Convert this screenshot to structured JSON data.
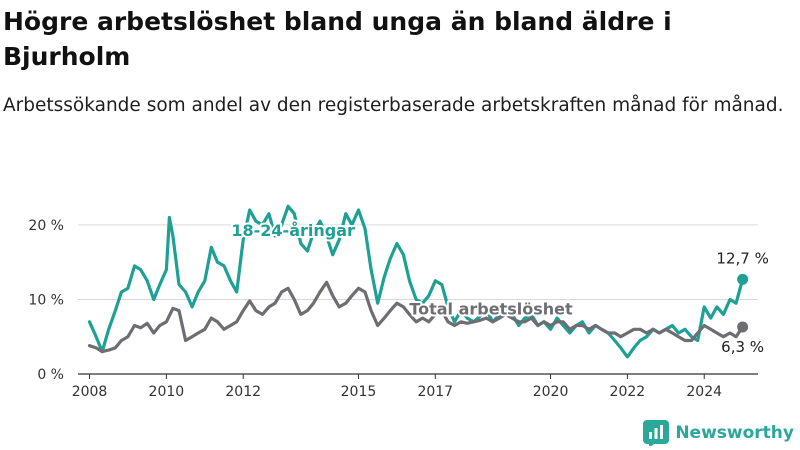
{
  "header": {
    "title": "Högre arbetslöshet bland unga än bland äldre i Bjurholm",
    "subtitle": "Arbetssökande som andel av den registerbaserade arbetskraften månad för månad."
  },
  "brand": {
    "name": "Newsworthy",
    "icon": "newsworthy-logo-icon",
    "color": "#2aa89a"
  },
  "chart_data": {
    "type": "line",
    "title": "",
    "xlabel": "",
    "ylabel": "",
    "xlim": [
      2007.7,
      2025.4
    ],
    "ylim": [
      0,
      22
    ],
    "y_ticks": [
      0,
      10,
      20
    ],
    "y_tick_labels": [
      "0 %",
      "10 %",
      "20 %"
    ],
    "x_ticks": [
      2008,
      2010,
      2012,
      2015,
      2017,
      2020,
      2022,
      2024
    ],
    "x_tick_labels": [
      "2008",
      "2010",
      "2012",
      "2015",
      "2017",
      "2020",
      "2022",
      "2024"
    ],
    "grid": true,
    "legend": "inline labels",
    "series": [
      {
        "name": "18-24-åringar",
        "color": "#1ea095",
        "end_label": "12,7 %",
        "points": [
          [
            2008.0,
            7.0
          ],
          [
            2008.17,
            5.0
          ],
          [
            2008.33,
            3.0
          ],
          [
            2008.5,
            6.0
          ],
          [
            2008.67,
            8.5
          ],
          [
            2008.83,
            11.0
          ],
          [
            2009.0,
            11.5
          ],
          [
            2009.17,
            14.5
          ],
          [
            2009.33,
            14.0
          ],
          [
            2009.5,
            12.5
          ],
          [
            2009.67,
            10.0
          ],
          [
            2009.83,
            12.0
          ],
          [
            2010.0,
            14.0
          ],
          [
            2010.08,
            21.0
          ],
          [
            2010.17,
            18.5
          ],
          [
            2010.33,
            12.0
          ],
          [
            2010.5,
            11.0
          ],
          [
            2010.67,
            9.0
          ],
          [
            2010.83,
            11.0
          ],
          [
            2011.0,
            12.5
          ],
          [
            2011.17,
            17.0
          ],
          [
            2011.33,
            15.0
          ],
          [
            2011.5,
            14.5
          ],
          [
            2011.67,
            12.5
          ],
          [
            2011.83,
            11.0
          ],
          [
            2012.0,
            18.0
          ],
          [
            2012.17,
            22.0
          ],
          [
            2012.33,
            20.5
          ],
          [
            2012.5,
            20.0
          ],
          [
            2012.67,
            21.5
          ],
          [
            2012.83,
            18.5
          ],
          [
            2013.0,
            20.0
          ],
          [
            2013.17,
            22.5
          ],
          [
            2013.33,
            21.5
          ],
          [
            2013.5,
            17.5
          ],
          [
            2013.67,
            16.5
          ],
          [
            2013.83,
            19.0
          ],
          [
            2014.0,
            20.5
          ],
          [
            2014.17,
            18.5
          ],
          [
            2014.33,
            16.0
          ],
          [
            2014.5,
            18.0
          ],
          [
            2014.67,
            21.5
          ],
          [
            2014.83,
            20.0
          ],
          [
            2015.0,
            22.0
          ],
          [
            2015.17,
            19.5
          ],
          [
            2015.33,
            14.0
          ],
          [
            2015.5,
            9.5
          ],
          [
            2015.67,
            13.0
          ],
          [
            2015.83,
            15.5
          ],
          [
            2016.0,
            17.5
          ],
          [
            2016.17,
            16.0
          ],
          [
            2016.33,
            12.5
          ],
          [
            2016.5,
            10.0
          ],
          [
            2016.67,
            9.5
          ],
          [
            2016.83,
            10.5
          ],
          [
            2017.0,
            12.5
          ],
          [
            2017.17,
            12.0
          ],
          [
            2017.33,
            9.0
          ],
          [
            2017.5,
            7.0
          ],
          [
            2017.67,
            8.5
          ],
          [
            2017.83,
            7.5
          ],
          [
            2018.0,
            7.0
          ],
          [
            2018.17,
            7.8
          ],
          [
            2018.33,
            8.5
          ],
          [
            2018.5,
            7.0
          ],
          [
            2018.67,
            8.0
          ],
          [
            2018.83,
            8.5
          ],
          [
            2019.0,
            8.0
          ],
          [
            2019.17,
            6.5
          ],
          [
            2019.33,
            7.5
          ],
          [
            2019.5,
            8.0
          ],
          [
            2019.67,
            6.5
          ],
          [
            2019.83,
            7.0
          ],
          [
            2020.0,
            6.0
          ],
          [
            2020.17,
            7.5
          ],
          [
            2020.33,
            6.5
          ],
          [
            2020.5,
            5.5
          ],
          [
            2020.67,
            6.5
          ],
          [
            2020.83,
            7.0
          ],
          [
            2021.0,
            5.5
          ],
          [
            2021.17,
            6.5
          ],
          [
            2021.33,
            6.0
          ],
          [
            2021.5,
            5.5
          ],
          [
            2021.67,
            4.5
          ],
          [
            2021.83,
            3.5
          ],
          [
            2022.0,
            2.3
          ],
          [
            2022.17,
            3.5
          ],
          [
            2022.33,
            4.5
          ],
          [
            2022.5,
            5.0
          ],
          [
            2022.67,
            6.0
          ],
          [
            2022.83,
            5.5
          ],
          [
            2023.0,
            6.0
          ],
          [
            2023.17,
            6.5
          ],
          [
            2023.33,
            5.5
          ],
          [
            2023.5,
            6.0
          ],
          [
            2023.67,
            5.0
          ],
          [
            2023.83,
            4.5
          ],
          [
            2024.0,
            9.0
          ],
          [
            2024.17,
            7.5
          ],
          [
            2024.33,
            9.0
          ],
          [
            2024.5,
            8.0
          ],
          [
            2024.67,
            10.0
          ],
          [
            2024.83,
            9.5
          ],
          [
            2025.0,
            12.7
          ]
        ]
      },
      {
        "name": "Total arbetslöshet",
        "color": "#6e6d72",
        "end_label": "6,3 %",
        "points": [
          [
            2008.0,
            3.8
          ],
          [
            2008.17,
            3.5
          ],
          [
            2008.33,
            3.0
          ],
          [
            2008.5,
            3.2
          ],
          [
            2008.67,
            3.5
          ],
          [
            2008.83,
            4.5
          ],
          [
            2009.0,
            5.0
          ],
          [
            2009.17,
            6.5
          ],
          [
            2009.33,
            6.2
          ],
          [
            2009.5,
            6.8
          ],
          [
            2009.67,
            5.5
          ],
          [
            2009.83,
            6.5
          ],
          [
            2010.0,
            7.0
          ],
          [
            2010.17,
            8.8
          ],
          [
            2010.33,
            8.5
          ],
          [
            2010.5,
            4.5
          ],
          [
            2010.67,
            5.0
          ],
          [
            2010.83,
            5.5
          ],
          [
            2011.0,
            6.0
          ],
          [
            2011.17,
            7.5
          ],
          [
            2011.33,
            7.0
          ],
          [
            2011.5,
            6.0
          ],
          [
            2011.67,
            6.5
          ],
          [
            2011.83,
            7.0
          ],
          [
            2012.0,
            8.5
          ],
          [
            2012.17,
            9.8
          ],
          [
            2012.33,
            8.5
          ],
          [
            2012.5,
            8.0
          ],
          [
            2012.67,
            9.0
          ],
          [
            2012.83,
            9.5
          ],
          [
            2013.0,
            11.0
          ],
          [
            2013.17,
            11.5
          ],
          [
            2013.33,
            10.0
          ],
          [
            2013.5,
            8.0
          ],
          [
            2013.67,
            8.5
          ],
          [
            2013.83,
            9.5
          ],
          [
            2014.0,
            11.0
          ],
          [
            2014.17,
            12.3
          ],
          [
            2014.33,
            10.5
          ],
          [
            2014.5,
            9.0
          ],
          [
            2014.67,
            9.5
          ],
          [
            2014.83,
            10.5
          ],
          [
            2015.0,
            11.5
          ],
          [
            2015.17,
            11.0
          ],
          [
            2015.33,
            8.5
          ],
          [
            2015.5,
            6.5
          ],
          [
            2015.67,
            7.5
          ],
          [
            2015.83,
            8.5
          ],
          [
            2016.0,
            9.5
          ],
          [
            2016.17,
            9.0
          ],
          [
            2016.33,
            8.0
          ],
          [
            2016.5,
            7.0
          ],
          [
            2016.67,
            7.5
          ],
          [
            2016.83,
            7.0
          ],
          [
            2017.0,
            8.0
          ],
          [
            2017.17,
            8.5
          ],
          [
            2017.33,
            7.0
          ],
          [
            2017.5,
            6.5
          ],
          [
            2017.67,
            7.0
          ],
          [
            2017.83,
            6.8
          ],
          [
            2018.0,
            7.0
          ],
          [
            2018.17,
            7.2
          ],
          [
            2018.33,
            7.5
          ],
          [
            2018.5,
            7.0
          ],
          [
            2018.67,
            7.5
          ],
          [
            2018.83,
            8.0
          ],
          [
            2019.0,
            7.5
          ],
          [
            2019.17,
            7.0
          ],
          [
            2019.33,
            7.0
          ],
          [
            2019.5,
            7.5
          ],
          [
            2019.67,
            6.5
          ],
          [
            2019.83,
            7.0
          ],
          [
            2020.0,
            6.5
          ],
          [
            2020.17,
            7.0
          ],
          [
            2020.33,
            7.0
          ],
          [
            2020.5,
            6.0
          ],
          [
            2020.67,
            6.5
          ],
          [
            2020.83,
            6.5
          ],
          [
            2021.0,
            6.0
          ],
          [
            2021.17,
            6.5
          ],
          [
            2021.33,
            6.0
          ],
          [
            2021.5,
            5.5
          ],
          [
            2021.67,
            5.5
          ],
          [
            2021.83,
            5.0
          ],
          [
            2022.0,
            5.5
          ],
          [
            2022.17,
            6.0
          ],
          [
            2022.33,
            6.0
          ],
          [
            2022.5,
            5.5
          ],
          [
            2022.67,
            6.0
          ],
          [
            2022.83,
            5.5
          ],
          [
            2023.0,
            6.0
          ],
          [
            2023.17,
            5.5
          ],
          [
            2023.33,
            5.0
          ],
          [
            2023.5,
            4.5
          ],
          [
            2023.67,
            4.5
          ],
          [
            2023.83,
            5.5
          ],
          [
            2024.0,
            6.5
          ],
          [
            2024.17,
            6.0
          ],
          [
            2024.33,
            5.5
          ],
          [
            2024.5,
            5.0
          ],
          [
            2024.67,
            5.5
          ],
          [
            2024.83,
            5.0
          ],
          [
            2025.0,
            6.3
          ]
        ]
      }
    ]
  }
}
